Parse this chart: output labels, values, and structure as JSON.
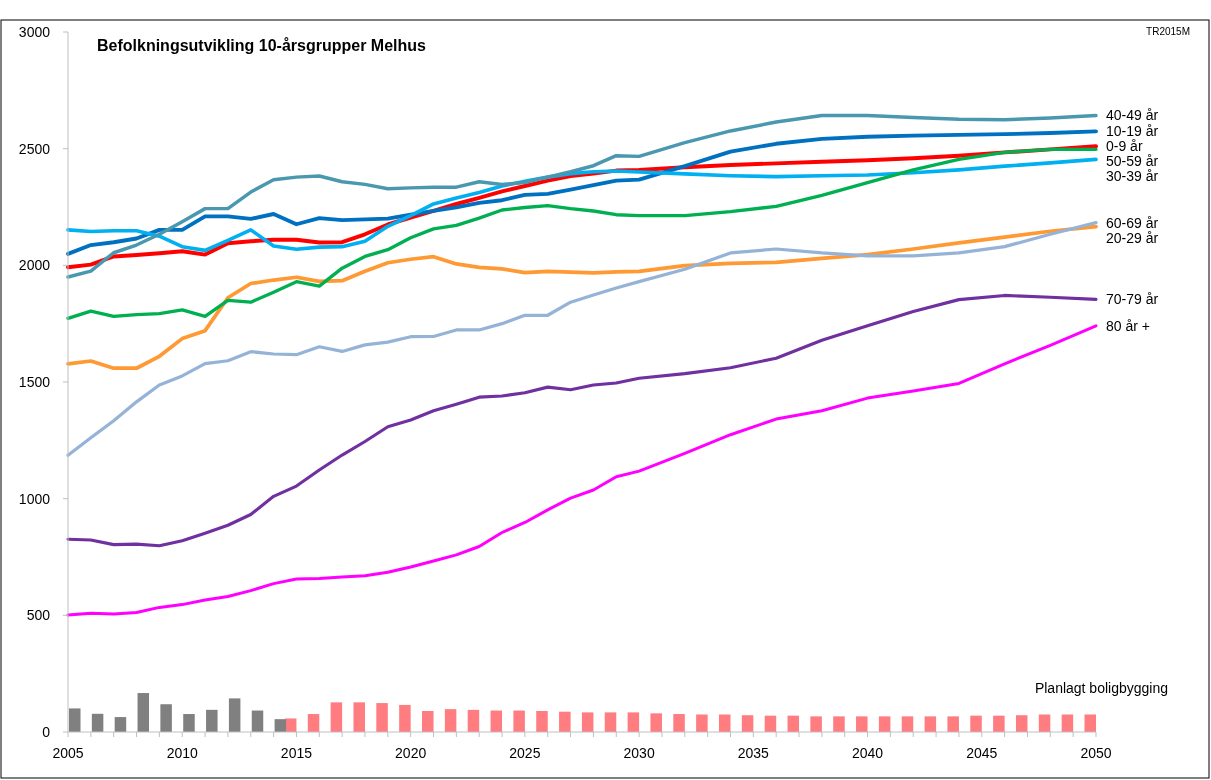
{
  "chart_data": {
    "type": "line",
    "title": "Befolkningsutvikling 10-årsgrupper Melhus",
    "annotations": [
      "TR2015M"
    ],
    "xlim": [
      2005,
      2050
    ],
    "ylim": [
      0,
      3000
    ],
    "yticks": [
      0,
      500,
      1000,
      1500,
      2000,
      2500,
      3000
    ],
    "xticks": [
      2005,
      {
        "value": 2006,
        "label": null
      },
      {
        "value": 2007,
        "label": null
      },
      {
        "value": 2008,
        "label": null
      },
      {
        "value": 2009,
        "label": null
      },
      2010,
      {
        "value": 2011,
        "label": null
      },
      {
        "value": 2012,
        "label": null
      },
      {
        "value": 2013,
        "label": null
      },
      {
        "value": 2014,
        "label": null
      },
      2015,
      {
        "value": 2016,
        "label": null
      },
      {
        "value": 2017,
        "label": null
      },
      {
        "value": 2018,
        "label": null
      },
      {
        "value": 2019,
        "label": null
      },
      2020,
      {
        "value": 2021,
        "label": null
      },
      {
        "value": 2022,
        "label": null
      },
      {
        "value": 2023,
        "label": null
      },
      {
        "value": 2024,
        "label": null
      },
      2025,
      {
        "value": 2026,
        "label": null
      },
      {
        "value": 2027,
        "label": null
      },
      {
        "value": 2028,
        "label": null
      },
      {
        "value": 2029,
        "label": null
      },
      2030,
      {
        "value": 2031,
        "label": null
      },
      {
        "value": 2032,
        "label": null
      },
      {
        "value": 2033,
        "label": null
      },
      {
        "value": 2034,
        "label": null
      },
      2035,
      {
        "value": 2036,
        "label": null
      },
      {
        "value": 2037,
        "label": null
      },
      {
        "value": 2038,
        "label": null
      },
      {
        "value": 2039,
        "label": null
      },
      2040,
      {
        "value": 2041,
        "label": null
      },
      {
        "value": 2042,
        "label": null
      },
      {
        "value": 2043,
        "label": null
      },
      {
        "value": 2044,
        "label": null
      },
      2045,
      {
        "value": 2046,
        "label": null
      },
      {
        "value": 2047,
        "label": null
      },
      {
        "value": 2048,
        "label": null
      },
      {
        "value": 2049,
        "label": null
      },
      2050
    ],
    "series": [
      {
        "type": "bar",
        "name": "Planlagt boligbygging",
        "color": "#ff7c80",
        "x": [
          2015,
          2016,
          2017,
          2018,
          2019,
          2020,
          2021,
          2022,
          2023,
          2024,
          2025,
          2026,
          2027,
          2028,
          2029,
          2030,
          2031,
          2032,
          2033,
          2034,
          2035,
          2036,
          2037,
          2038,
          2039,
          2040,
          2041,
          2042,
          2043,
          2044,
          2045,
          2046,
          2047,
          2048,
          2049,
          2050
        ],
        "values": [
          58,
          77,
          127,
          127,
          124,
          116,
          90,
          98,
          95,
          92,
          92,
          90,
          87,
          84,
          84,
          84,
          80,
          77,
          75,
          75,
          72,
          70,
          70,
          67,
          67,
          67,
          67,
          67,
          67,
          67,
          70,
          70,
          72,
          75,
          75,
          75
        ]
      },
      {
        "type": "bar",
        "color": "#808080",
        "x": [
          2005,
          2006,
          2007,
          2008,
          2009,
          2010,
          2011,
          2012,
          2013,
          2014
        ],
        "values": [
          101,
          78,
          64,
          167,
          119,
          77,
          95,
          144,
          92,
          55
        ]
      },
      {
        "name": "0-9 år",
        "color": "#ff0000",
        "x": [
          2005,
          2006,
          2007,
          2008,
          2009,
          2010,
          2011,
          2012,
          2013,
          2014,
          2015,
          2016,
          2017,
          2018,
          2019,
          2020,
          2021,
          2022,
          2023,
          2024,
          2025,
          2026,
          2027,
          2028,
          2029,
          2030,
          2032,
          2034,
          2036,
          2038,
          2040,
          2042,
          2044,
          2046,
          2048,
          2050
        ],
        "values": [
          1992,
          2003,
          2038,
          2044,
          2052,
          2060,
          2046,
          2095,
          2103,
          2110,
          2110,
          2098,
          2099,
          2133,
          2175,
          2205,
          2233,
          2263,
          2289,
          2317,
          2340,
          2363,
          2383,
          2393,
          2406,
          2409,
          2420,
          2430,
          2437,
          2444,
          2450,
          2459,
          2470,
          2484,
          2497,
          2510
        ]
      },
      {
        "name": "10-19 år",
        "color": "#0070c0",
        "x": [
          2005,
          2006,
          2007,
          2008,
          2009,
          2010,
          2011,
          2012,
          2013,
          2014,
          2015,
          2016,
          2017,
          2018,
          2019,
          2020,
          2021,
          2022,
          2023,
          2024,
          2025,
          2026,
          2027,
          2028,
          2029,
          2030,
          2032,
          2034,
          2036,
          2038,
          2040,
          2042,
          2044,
          2046,
          2048,
          2050
        ],
        "values": [
          2049,
          2087,
          2099,
          2115,
          2152,
          2152,
          2210,
          2210,
          2199,
          2220,
          2176,
          2202,
          2194,
          2197,
          2200,
          2217,
          2233,
          2248,
          2268,
          2279,
          2302,
          2306,
          2324,
          2344,
          2363,
          2367,
          2425,
          2487,
          2521,
          2542,
          2551,
          2556,
          2559,
          2562,
          2567,
          2574
        ]
      },
      {
        "name": "20-29 år",
        "color": "#ff9933",
        "x": [
          2005,
          2006,
          2007,
          2008,
          2009,
          2010,
          2011,
          2012,
          2013,
          2014,
          2015,
          2016,
          2017,
          2018,
          2019,
          2020,
          2021,
          2022,
          2023,
          2024,
          2025,
          2026,
          2027,
          2028,
          2029,
          2030,
          2032,
          2034,
          2036,
          2038,
          2040,
          2042,
          2044,
          2046,
          2048,
          2050
        ],
        "values": [
          1578,
          1590,
          1559,
          1559,
          1610,
          1686,
          1720,
          1861,
          1922,
          1937,
          1949,
          1931,
          1934,
          1975,
          2011,
          2026,
          2037,
          2006,
          1991,
          1985,
          1969,
          1974,
          1971,
          1968,
          1972,
          1974,
          1999,
          2008,
          2013,
          2030,
          2046,
          2070,
          2096,
          2121,
          2146,
          2166
        ]
      },
      {
        "name": "30-39 år",
        "color": "#00b0f0",
        "x": [
          2005,
          2006,
          2007,
          2008,
          2009,
          2010,
          2011,
          2012,
          2013,
          2014,
          2015,
          2016,
          2017,
          2018,
          2019,
          2020,
          2021,
          2022,
          2023,
          2024,
          2025,
          2026,
          2027,
          2028,
          2029,
          2030,
          2032,
          2034,
          2036,
          2038,
          2040,
          2042,
          2044,
          2046,
          2048,
          2050
        ],
        "values": [
          2152,
          2145,
          2148,
          2148,
          2125,
          2080,
          2064,
          2107,
          2152,
          2083,
          2069,
          2078,
          2080,
          2103,
          2167,
          2213,
          2263,
          2289,
          2312,
          2340,
          2360,
          2378,
          2393,
          2401,
          2404,
          2400,
          2392,
          2384,
          2380,
          2384,
          2387,
          2397,
          2409,
          2425,
          2439,
          2454
        ]
      },
      {
        "name": "40-49 år",
        "color": "#4a98b0",
        "x": [
          2005,
          2006,
          2007,
          2008,
          2009,
          2010,
          2011,
          2012,
          2013,
          2014,
          2015,
          2016,
          2017,
          2018,
          2019,
          2020,
          2021,
          2022,
          2023,
          2024,
          2025,
          2026,
          2027,
          2028,
          2029,
          2030,
          2032,
          2034,
          2036,
          2038,
          2040,
          2042,
          2044,
          2046,
          2048,
          2050
        ],
        "values": [
          1950,
          1975,
          2054,
          2087,
          2133,
          2187,
          2243,
          2243,
          2314,
          2367,
          2378,
          2383,
          2358,
          2347,
          2328,
          2332,
          2335,
          2335,
          2358,
          2346,
          2355,
          2378,
          2401,
          2427,
          2470,
          2467,
          2526,
          2576,
          2614,
          2642,
          2642,
          2634,
          2626,
          2624,
          2631,
          2642
        ]
      },
      {
        "name": "50-59 år",
        "color": "#00b050",
        "x": [
          2005,
          2006,
          2007,
          2008,
          2009,
          2010,
          2011,
          2012,
          2013,
          2014,
          2015,
          2016,
          2017,
          2018,
          2019,
          2020,
          2021,
          2022,
          2023,
          2024,
          2025,
          2026,
          2027,
          2028,
          2029,
          2030,
          2032,
          2034,
          2036,
          2038,
          2040,
          2042,
          2044,
          2046,
          2048,
          2050
        ],
        "values": [
          1773,
          1804,
          1781,
          1789,
          1793,
          1809,
          1781,
          1850,
          1842,
          1885,
          1930,
          1911,
          1988,
          2038,
          2067,
          2118,
          2156,
          2171,
          2202,
          2237,
          2248,
          2256,
          2243,
          2233,
          2217,
          2213,
          2213,
          2230,
          2253,
          2300,
          2354,
          2409,
          2454,
          2484,
          2497,
          2497
        ]
      },
      {
        "name": "60-69 år",
        "color": "#95b3d7",
        "x": [
          2005,
          2006,
          2007,
          2008,
          2009,
          2010,
          2011,
          2012,
          2013,
          2014,
          2015,
          2016,
          2017,
          2018,
          2019,
          2020,
          2021,
          2022,
          2023,
          2024,
          2025,
          2026,
          2027,
          2028,
          2029,
          2030,
          2032,
          2034,
          2036,
          2038,
          2040,
          2042,
          2044,
          2046,
          2048,
          2050
        ],
        "values": [
          1186,
          1261,
          1334,
          1415,
          1487,
          1526,
          1579,
          1591,
          1630,
          1620,
          1617,
          1651,
          1631,
          1659,
          1671,
          1694,
          1695,
          1723,
          1723,
          1750,
          1786,
          1786,
          1842,
          1873,
          1903,
          1930,
          1983,
          2053,
          2070,
          2053,
          2041,
          2041,
          2053,
          2080,
          2133,
          2183
        ]
      },
      {
        "name": "70-79 år",
        "color": "#7030a0",
        "x": [
          2005,
          2006,
          2007,
          2008,
          2009,
          2010,
          2011,
          2012,
          2013,
          2014,
          2015,
          2016,
          2017,
          2018,
          2019,
          2020,
          2021,
          2022,
          2023,
          2024,
          2025,
          2026,
          2027,
          2028,
          2029,
          2030,
          2032,
          2034,
          2036,
          2038,
          2040,
          2042,
          2044,
          2046,
          2048,
          2050
        ],
        "values": [
          826,
          823,
          803,
          805,
          798,
          820,
          852,
          886,
          932,
          1010,
          1054,
          1123,
          1187,
          1245,
          1308,
          1337,
          1377,
          1405,
          1435,
          1440,
          1454,
          1478,
          1467,
          1487,
          1496,
          1516,
          1536,
          1561,
          1602,
          1679,
          1741,
          1802,
          1853,
          1871,
          1863,
          1854
        ]
      },
      {
        "name": "80 år +",
        "color": "#ff00ff",
        "x": [
          2005,
          2006,
          2007,
          2008,
          2009,
          2010,
          2011,
          2012,
          2013,
          2014,
          2015,
          2016,
          2017,
          2018,
          2019,
          2020,
          2021,
          2022,
          2023,
          2024,
          2025,
          2026,
          2027,
          2028,
          2029,
          2030,
          2032,
          2034,
          2036,
          2038,
          2040,
          2042,
          2044,
          2046,
          2048,
          2050
        ],
        "values": [
          501,
          509,
          506,
          512,
          534,
          546,
          566,
          581,
          606,
          636,
          656,
          658,
          664,
          670,
          685,
          707,
          733,
          759,
          795,
          855,
          898,
          952,
          1002,
          1037,
          1094,
          1118,
          1194,
          1274,
          1341,
          1377,
          1431,
          1461,
          1494,
          1578,
          1657,
          1741
        ]
      }
    ]
  }
}
